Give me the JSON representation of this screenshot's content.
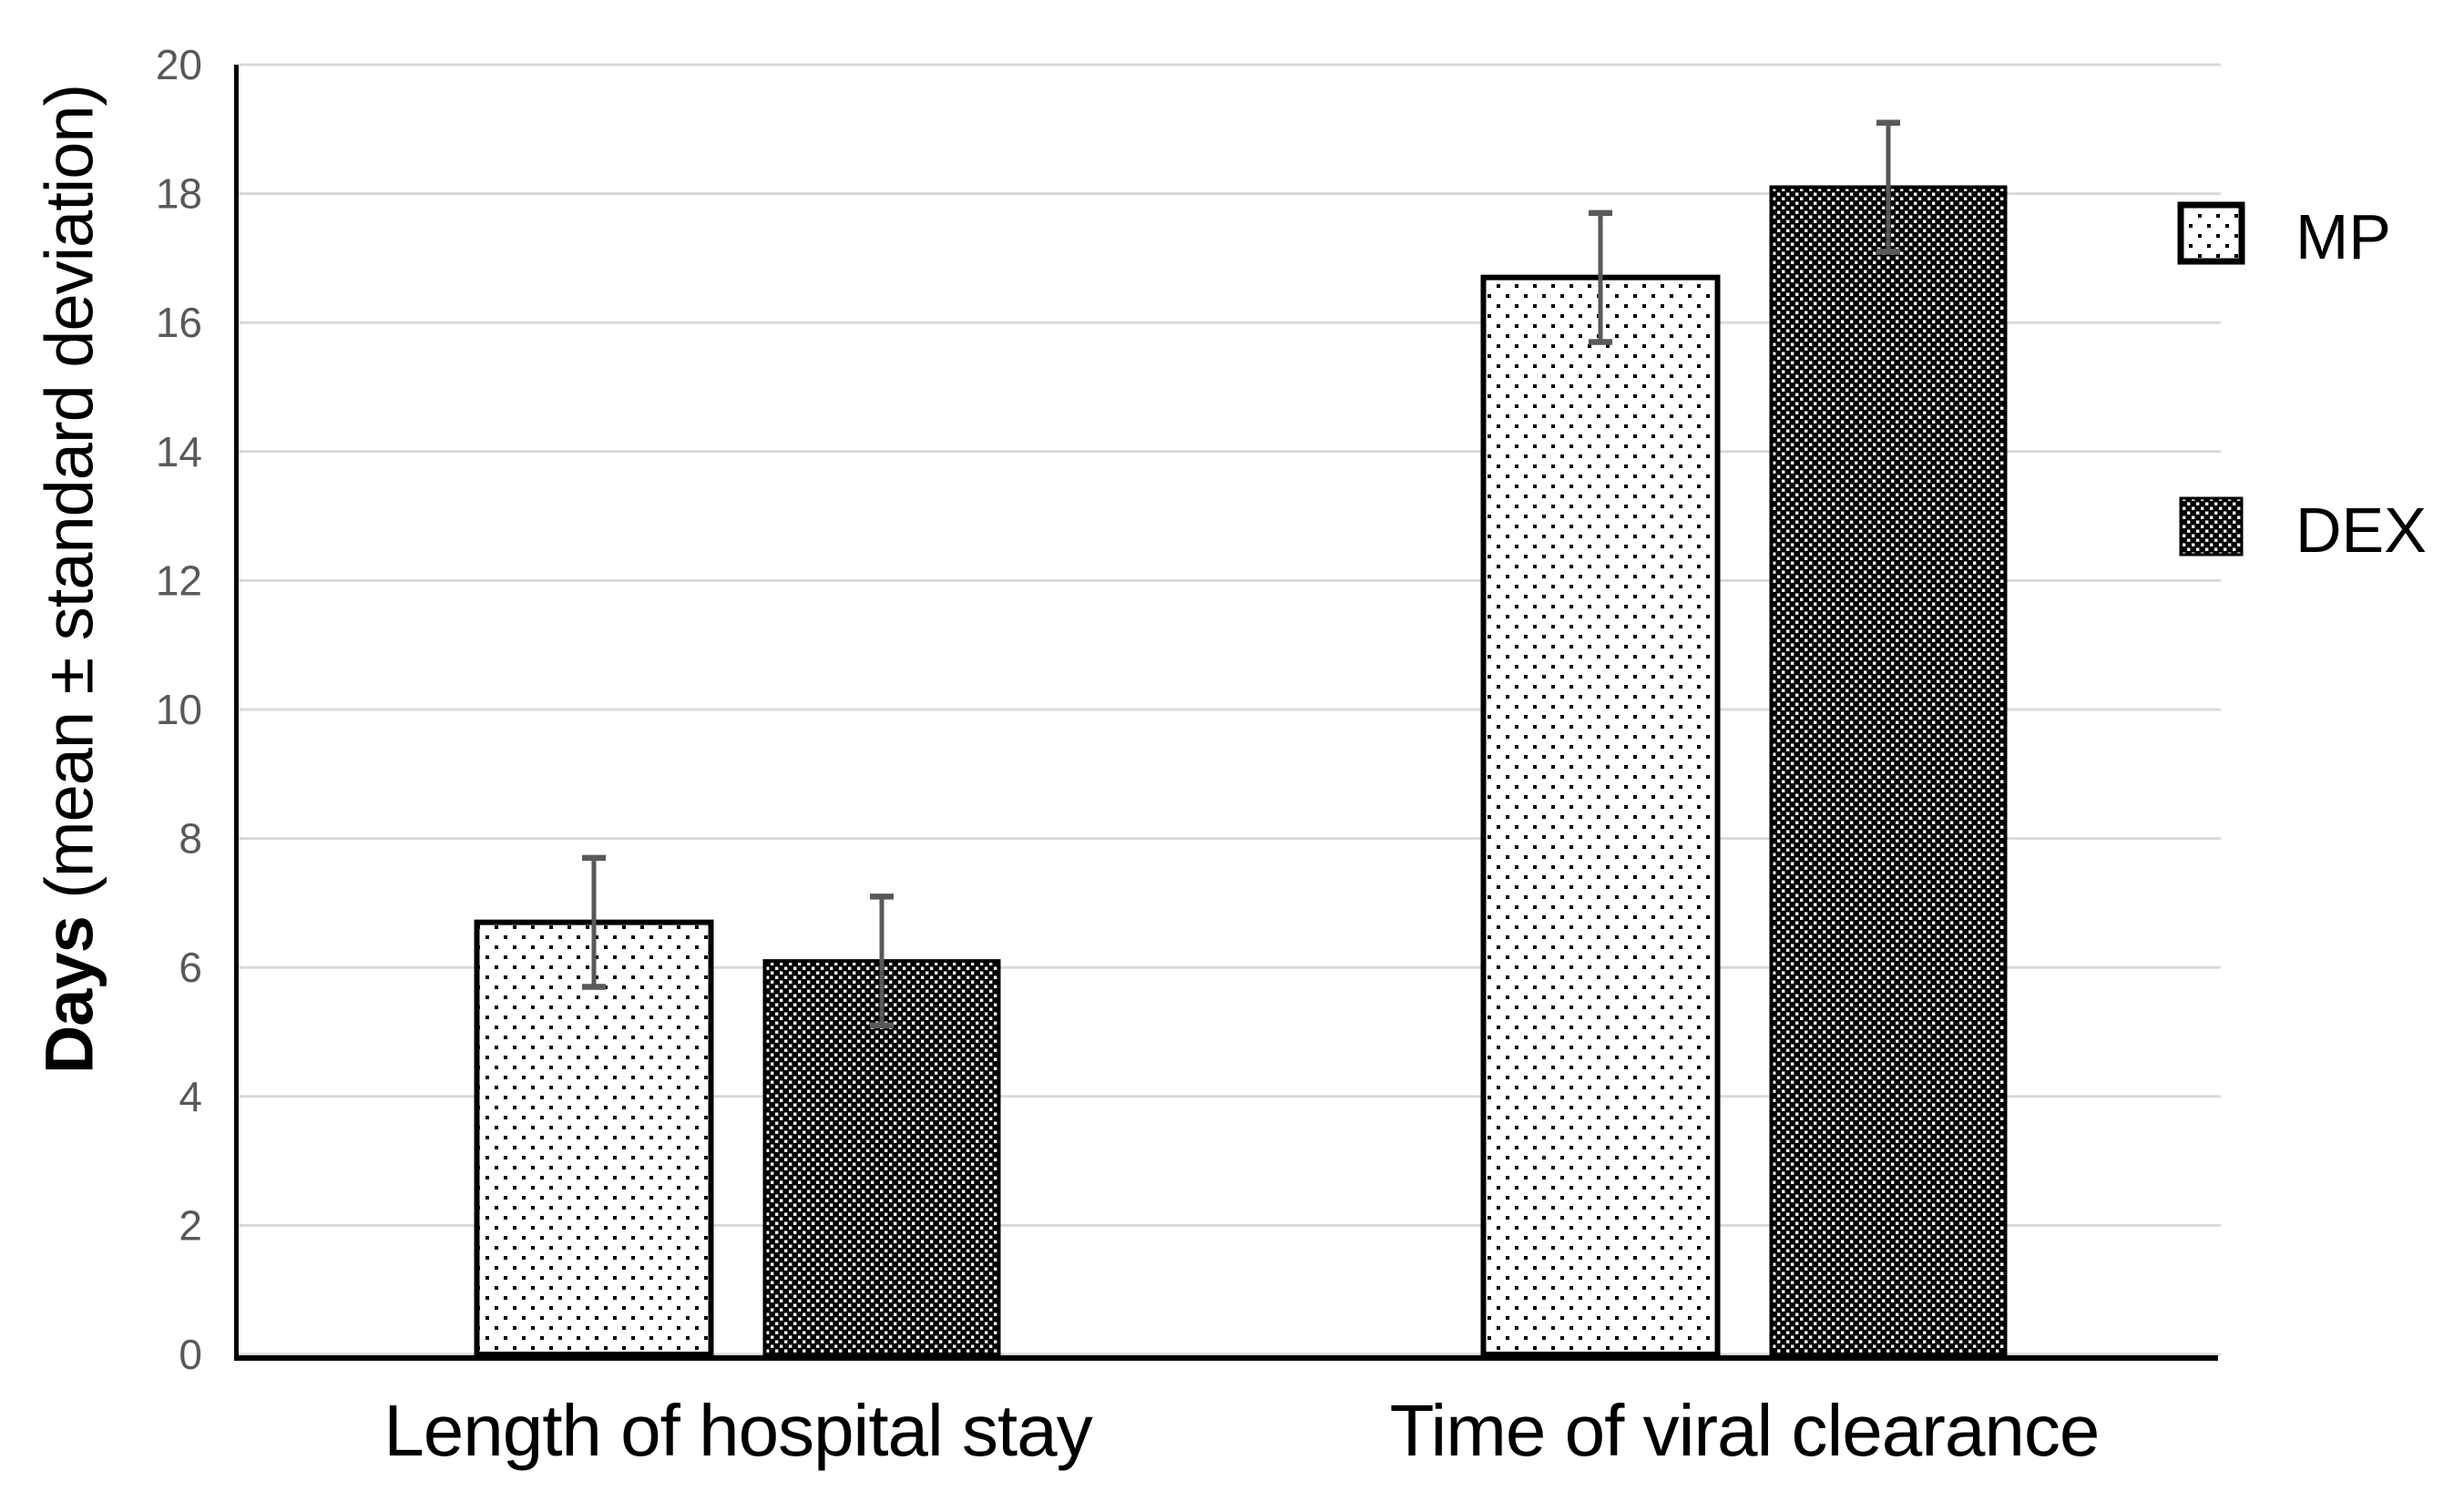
{
  "chart_data": {
    "type": "bar",
    "title": "",
    "categories": [
      "Length of hospital stay",
      "Time of viral clearance"
    ],
    "series": [
      {
        "name": "MP",
        "swatch_style": "white-with-sparse-black-dots",
        "values": [
          6.7,
          16.7
        ],
        "error_sd": [
          1.0,
          1.0
        ]
      },
      {
        "name": "DEX",
        "swatch_style": "black-with-white-dots",
        "values": [
          6.1,
          18.1
        ],
        "error_sd": [
          1.0,
          1.0
        ]
      }
    ],
    "ylabel": {
      "bold": "Days",
      "regular": " (mean ± standard deviation)"
    },
    "xlabel": "",
    "ylim": [
      0,
      20
    ],
    "y_ticks": [
      0,
      2,
      4,
      6,
      8,
      10,
      12,
      14,
      16,
      18,
      20
    ],
    "grid": true,
    "legend_position": "right",
    "error_bars": "mean ± standard deviation, capped both ends",
    "colors": {
      "background": "#ffffff",
      "axis_line": "#000000",
      "gridline": "#d9d9d9",
      "tick_label": "#595959",
      "category_label": "#000000",
      "legend_label": "#000000",
      "error_bar": "#595959",
      "bar_outline": "#000000",
      "mp_fill_base": "#ffffff",
      "mp_dot": "#000000",
      "dex_fill_base": "#000000",
      "dex_dot": "#ffffff"
    }
  }
}
